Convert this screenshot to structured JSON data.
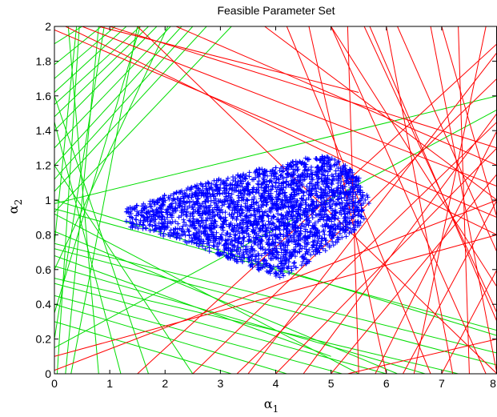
{
  "chart_data": {
    "type": "line",
    "title": "Feasible Parameter Set",
    "xlabel": {
      "symbol": "α",
      "subscript": "1"
    },
    "ylabel": {
      "symbol": "α",
      "subscript": "2"
    },
    "xlim": [
      0,
      8
    ],
    "ylim": [
      0,
      2
    ],
    "xticks": [
      "0",
      "1",
      "2",
      "3",
      "4",
      "5",
      "6",
      "7",
      "8"
    ],
    "yticks": [
      "0",
      "0.2",
      "0.4",
      "0.6",
      "0.8",
      "1",
      "1.2",
      "1.4",
      "1.6",
      "1.8",
      "2"
    ],
    "grid": false,
    "colors": {
      "green_lines": "#00dd00",
      "red_lines": "#ff0000",
      "feasible_set": "#0000ff"
    },
    "series": [
      {
        "color": "green",
        "type": "line",
        "segments": [
          [
            [
              0.0,
              1.12
            ],
            [
              2.5,
              2.0
            ]
          ],
          [
            [
              0.0,
              1.05
            ],
            [
              2.75,
              2.0
            ]
          ],
          [
            [
              0.0,
              1.2
            ],
            [
              2.3,
              2.0
            ]
          ],
          [
            [
              0.0,
              1.3
            ],
            [
              2.1,
              2.0
            ]
          ],
          [
            [
              0.0,
              1.4
            ],
            [
              1.85,
              2.0
            ]
          ],
          [
            [
              0.0,
              1.48
            ],
            [
              1.7,
              2.0
            ]
          ],
          [
            [
              0.0,
              1.55
            ],
            [
              1.55,
              2.0
            ]
          ],
          [
            [
              0.0,
              1.62
            ],
            [
              1.3,
              2.0
            ]
          ],
          [
            [
              0.0,
              1.7
            ],
            [
              1.1,
              2.0
            ]
          ],
          [
            [
              0.0,
              1.78
            ],
            [
              0.85,
              2.0
            ]
          ],
          [
            [
              0.0,
              1.9
            ],
            [
              0.5,
              2.0
            ]
          ],
          [
            [
              0.0,
              0.98
            ],
            [
              8.0,
              1.6
            ]
          ],
          [
            [
              0.0,
              0.93
            ],
            [
              3.2,
              2.0
            ]
          ],
          [
            [
              0.0,
              0.2
            ],
            [
              0.9,
              2.0
            ]
          ],
          [
            [
              0.0,
              0.75
            ],
            [
              0.4,
              2.0
            ]
          ],
          [
            [
              0.05,
              0.0
            ],
            [
              0.45,
              2.0
            ]
          ],
          [
            [
              0.3,
              0.0
            ],
            [
              1.5,
              2.0
            ]
          ],
          [
            [
              0.8,
              0.0
            ],
            [
              0.25,
              2.0
            ]
          ],
          [
            [
              0.2,
              0.0
            ],
            [
              0.8,
              2.0
            ]
          ],
          [
            [
              0.0,
              0.35
            ],
            [
              1.55,
              2.0
            ]
          ],
          [
            [
              0.0,
              0.6
            ],
            [
              2.05,
              2.0
            ]
          ],
          [
            [
              1.2,
              0.0
            ],
            [
              0.0,
              1.45
            ]
          ],
          [
            [
              1.7,
              0.0
            ],
            [
              0.0,
              1.6
            ]
          ],
          [
            [
              2.5,
              0.0
            ],
            [
              0.0,
              1.2
            ]
          ],
          [
            [
              0.0,
              0.15
            ],
            [
              8.0,
              1.52
            ]
          ],
          [
            [
              0.0,
              0.72
            ],
            [
              8.0,
              0.05
            ]
          ],
          [
            [
              0.0,
              0.75
            ],
            [
              8.0,
              0.12
            ]
          ],
          [
            [
              0.0,
              0.95
            ],
            [
              8.0,
              0.25
            ]
          ],
          [
            [
              0.0,
              1.0
            ],
            [
              8.0,
              0.22
            ]
          ],
          [
            [
              0.0,
              0.68
            ],
            [
              5.0,
              0.1
            ]
          ],
          [
            [
              0.0,
              0.55
            ],
            [
              7.3,
              0.0
            ]
          ],
          [
            [
              0.0,
              0.62
            ],
            [
              6.7,
              0.0
            ]
          ],
          [
            [
              0.0,
              0.82
            ],
            [
              6.2,
              0.0
            ]
          ],
          [
            [
              0.0,
              0.92
            ],
            [
              5.5,
              0.0
            ]
          ],
          [
            [
              0.0,
              0.45
            ],
            [
              5.2,
              0.0
            ]
          ],
          [
            [
              0.0,
              0.4
            ],
            [
              4.2,
              0.0
            ]
          ],
          [
            [
              0.0,
              0.52
            ],
            [
              6.0,
              0.0
            ]
          ],
          [
            [
              0.0,
              0.3
            ],
            [
              3.2,
              0.0
            ]
          ]
        ]
      },
      {
        "color": "red",
        "type": "line",
        "segments": [
          [
            [
              0.0,
              0.1
            ],
            [
              8.0,
              0.8
            ]
          ],
          [
            [
              0.0,
              0.02
            ],
            [
              8.0,
              1.0
            ]
          ],
          [
            [
              1.5,
              0.0
            ],
            [
              8.0,
              1.9
            ]
          ],
          [
            [
              2.5,
              0.0
            ],
            [
              8.0,
              1.7
            ]
          ],
          [
            [
              3.5,
              0.0
            ],
            [
              8.0,
              1.85
            ]
          ],
          [
            [
              4.5,
              0.0
            ],
            [
              8.0,
              1.5
            ]
          ],
          [
            [
              3.3,
              0.0
            ],
            [
              8.0,
              1.45
            ]
          ],
          [
            [
              4.0,
              0.0
            ],
            [
              8.0,
              1.3
            ]
          ],
          [
            [
              5.0,
              0.0
            ],
            [
              8.0,
              1.15
            ]
          ],
          [
            [
              5.8,
              0.0
            ],
            [
              8.0,
              1.4
            ]
          ],
          [
            [
              6.3,
              0.0
            ],
            [
              8.0,
              1.0
            ]
          ],
          [
            [
              7.0,
              0.0
            ],
            [
              8.0,
              0.6
            ]
          ],
          [
            [
              8.0,
              0.0
            ],
            [
              6.8,
              2.0
            ]
          ],
          [
            [
              7.8,
              0.0
            ],
            [
              5.0,
              2.0
            ]
          ],
          [
            [
              7.2,
              0.0
            ],
            [
              6.0,
              2.0
            ]
          ],
          [
            [
              6.8,
              0.0
            ],
            [
              4.2,
              2.0
            ]
          ],
          [
            [
              6.0,
              0.0
            ],
            [
              4.6,
              2.0
            ]
          ],
          [
            [
              5.5,
              0.0
            ],
            [
              5.3,
              2.0
            ]
          ],
          [
            [
              7.5,
              0.0
            ],
            [
              7.3,
              2.0
            ]
          ],
          [
            [
              6.5,
              0.0
            ],
            [
              7.8,
              2.0
            ]
          ],
          [
            [
              8.0,
              0.3
            ],
            [
              5.7,
              2.0
            ]
          ],
          [
            [
              8.0,
              0.7
            ],
            [
              6.2,
              2.0
            ]
          ],
          [
            [
              8.0,
              0.9
            ],
            [
              7.0,
              2.0
            ]
          ],
          [
            [
              5.3,
              0.0
            ],
            [
              8.0,
              0.2
            ]
          ],
          [
            [
              0.5,
              2.0
            ],
            [
              8.0,
              1.08
            ]
          ],
          [
            [
              0.2,
              2.0
            ],
            [
              8.0,
              0.8
            ]
          ],
          [
            [
              1.0,
              2.0
            ],
            [
              8.0,
              1.3
            ]
          ],
          [
            [
              0.0,
              1.98
            ],
            [
              8.0,
              0.9
            ]
          ],
          [
            [
              2.2,
              2.0
            ],
            [
              8.0,
              1.2
            ]
          ],
          [
            [
              3.8,
              2.0
            ],
            [
              8.0,
              1.0
            ]
          ],
          [
            [
              5.0,
              2.0
            ],
            [
              8.0,
              0.5
            ]
          ],
          [
            [
              5.6,
              2.0
            ],
            [
              8.0,
              0.35
            ]
          ],
          [
            [
              0.8,
              2.0
            ],
            [
              5.5,
              1.62
            ]
          ],
          [
            [
              1.5,
              2.0
            ],
            [
              8.0,
              0.0
            ]
          ]
        ]
      },
      {
        "color": "blue",
        "type": "scatter",
        "marker": "+",
        "region": [
          [
            1.3,
            0.95
          ],
          [
            1.8,
            1.01
          ],
          [
            2.9,
            1.12
          ],
          [
            3.7,
            1.18
          ],
          [
            4.5,
            1.24
          ],
          [
            4.9,
            1.26
          ],
          [
            5.3,
            1.2
          ],
          [
            5.65,
            1.08
          ],
          [
            5.7,
            0.95
          ],
          [
            5.5,
            0.84
          ],
          [
            5.0,
            0.73
          ],
          [
            4.5,
            0.62
          ],
          [
            4.1,
            0.55
          ],
          [
            3.5,
            0.62
          ],
          [
            2.6,
            0.73
          ],
          [
            1.8,
            0.81
          ],
          [
            1.3,
            0.85
          ]
        ]
      }
    ]
  }
}
